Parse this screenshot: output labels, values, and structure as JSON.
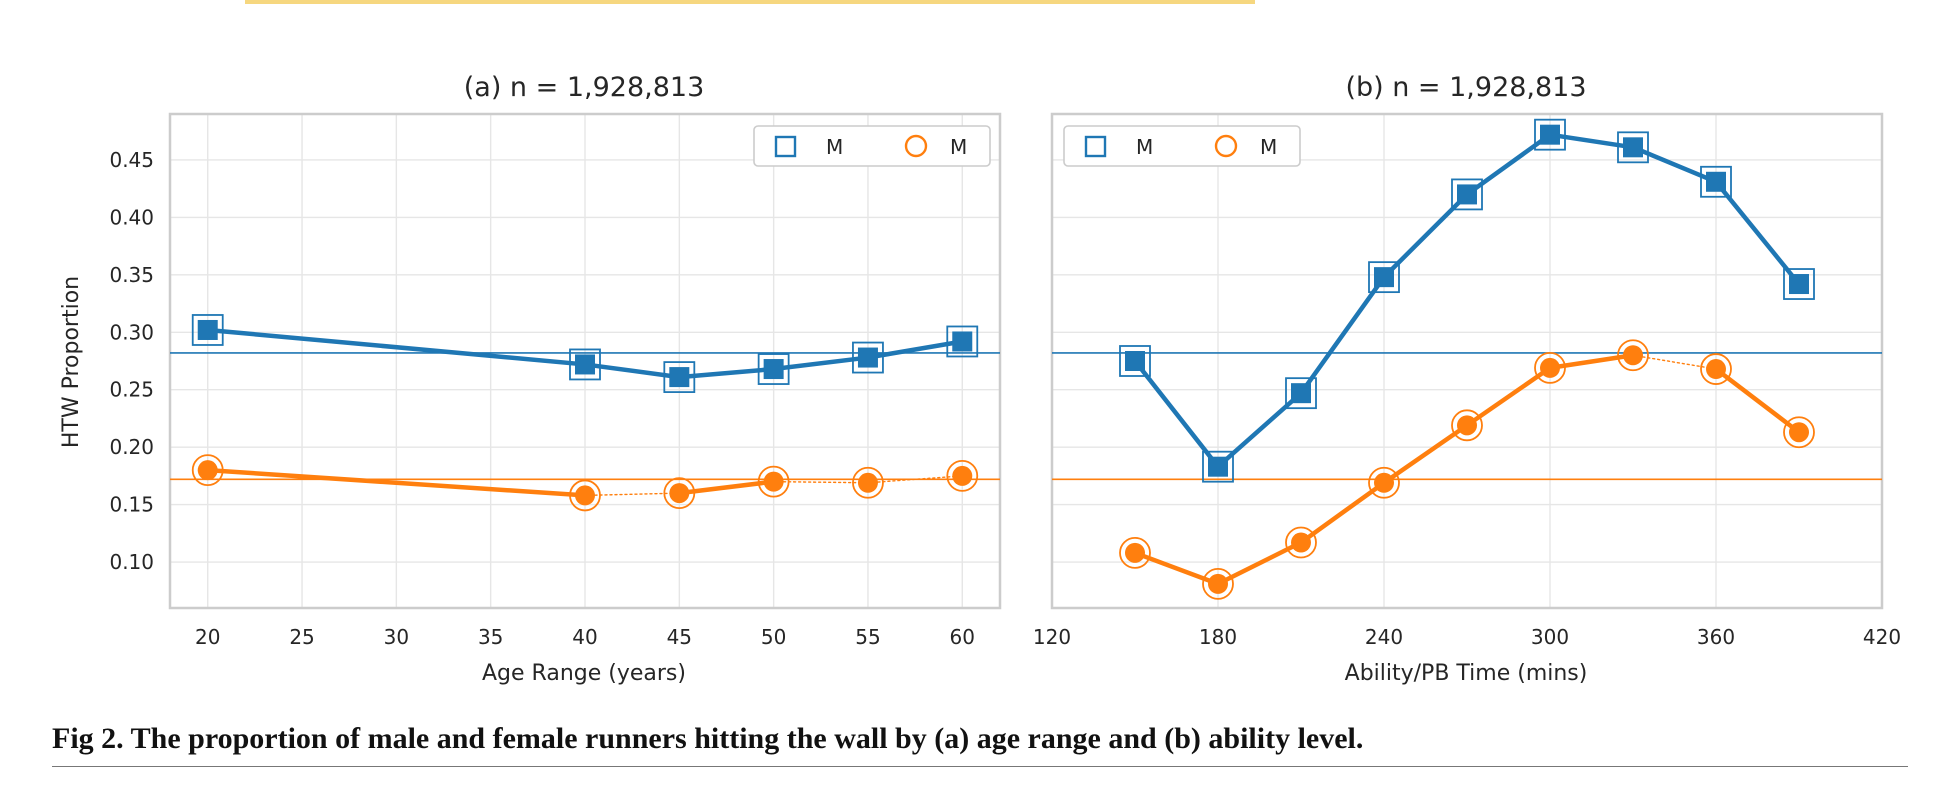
{
  "colors": {
    "male": "#1f77b4",
    "female": "#ff7f0e",
    "grid": "#e6e6e6",
    "frame": "#cccccc"
  },
  "chart_data": [
    {
      "type": "line",
      "title": "(a) n = 1,928,813",
      "xlabel": "Age Range (years)",
      "ylabel": "HTW Proportion",
      "xlim": [
        18,
        62
      ],
      "ylim": [
        0.06,
        0.49
      ],
      "xticks": [
        20,
        25,
        30,
        35,
        40,
        45,
        50,
        55,
        60
      ],
      "yticks": [
        0.1,
        0.15,
        0.2,
        0.25,
        0.3,
        0.35,
        0.4,
        0.45
      ],
      "ytick_labels": [
        "0.10",
        "0.15",
        "0.20",
        "0.25",
        "0.30",
        "0.35",
        "0.40",
        "0.45"
      ],
      "legend": {
        "position": "top-right",
        "entries": [
          "M",
          "M"
        ]
      },
      "series": [
        {
          "name": "M",
          "marker": "square",
          "color": "#1f77b4",
          "x": [
            20,
            40,
            45,
            50,
            55,
            60
          ],
          "y": [
            0.302,
            0.272,
            0.261,
            0.268,
            0.278,
            0.292
          ],
          "reference": 0.282,
          "dotted_segments": []
        },
        {
          "name": "M",
          "marker": "circle",
          "color": "#ff7f0e",
          "x": [
            20,
            40,
            45,
            50,
            55,
            60
          ],
          "y": [
            0.18,
            0.158,
            0.16,
            0.17,
            0.169,
            0.175
          ],
          "reference": 0.172,
          "dotted_segments": [
            1,
            3,
            4
          ]
        }
      ]
    },
    {
      "type": "line",
      "title": "(b) n = 1,928,813",
      "xlabel": "Ability/PB Time (mins)",
      "ylabel": "",
      "xlim": [
        120,
        420
      ],
      "ylim": [
        0.06,
        0.49
      ],
      "xticks": [
        120,
        180,
        240,
        300,
        360,
        420
      ],
      "yticks": [],
      "ytick_labels": [],
      "grid_y": [
        0.1,
        0.15,
        0.2,
        0.25,
        0.3,
        0.35,
        0.4,
        0.45
      ],
      "legend": {
        "position": "top-left",
        "entries": [
          "M",
          "M"
        ]
      },
      "series": [
        {
          "name": "M",
          "marker": "square",
          "color": "#1f77b4",
          "x": [
            150,
            180,
            210,
            240,
            270,
            300,
            330,
            360,
            390
          ],
          "y": [
            0.275,
            0.183,
            0.247,
            0.348,
            0.42,
            0.472,
            0.461,
            0.431,
            0.342
          ],
          "reference": 0.282,
          "dotted_segments": []
        },
        {
          "name": "M",
          "marker": "circle",
          "color": "#ff7f0e",
          "x": [
            150,
            180,
            210,
            240,
            270,
            300,
            330,
            360,
            390
          ],
          "y": [
            0.108,
            0.081,
            0.117,
            0.169,
            0.219,
            0.269,
            0.28,
            0.268,
            0.213
          ],
          "reference": 0.172,
          "dotted_segments": [
            6
          ]
        }
      ]
    }
  ],
  "caption": "Fig 2. The proportion of male and female runners hitting the wall by (a) age range and (b) ability level."
}
